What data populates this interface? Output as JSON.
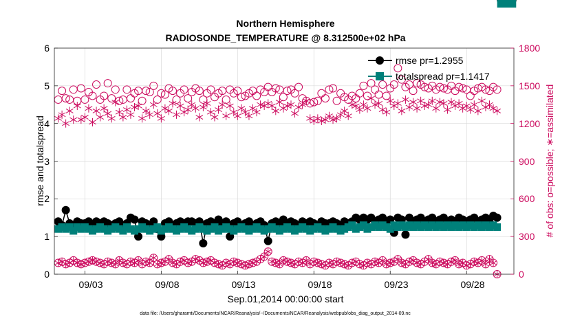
{
  "chart_data": {
    "type": "scatter",
    "title": "Northern Hemisphere",
    "subtitle": "RADIOSONDE_TEMPERATURE @ 8.312500e+02 hPa",
    "xlabel": "Sep.01,2014 00:00:00 start",
    "ylabel_left": "rmse and totalspread",
    "ylabel_right": "# of obs: o=possible; ∗=assimilated",
    "footer": "data file: /Users/gharamti/Documents/NCAR/Reanalysis/~/Documents/NCAR/Reanalysis/webpub/obs_diag_output_2014-09.nc",
    "x_tick_labels": [
      "09/03",
      "09/08",
      "09/13",
      "09/18",
      "09/23",
      "09/28"
    ],
    "x_tick_days": [
      3,
      8,
      13,
      18,
      23,
      28
    ],
    "xlim_days": [
      1,
      31.1
    ],
    "ylim_left": [
      0,
      6
    ],
    "yticks_left": [
      "0",
      "1",
      "2",
      "3",
      "4",
      "5",
      "6"
    ],
    "ylim_right": [
      0,
      1800
    ],
    "yticks_right": [
      "0",
      "300",
      "600",
      "900",
      "1200",
      "1500",
      "1800"
    ],
    "grid": true,
    "legend": {
      "placement": "top-right",
      "entries": [
        "rmse pr=1.2955",
        "totalspread pr=1.1417"
      ]
    },
    "colors": {
      "rmse": "#000000",
      "totalspread": "#00807a",
      "obs": "#cc0a5e",
      "grid": "#d9d9d9"
    },
    "x_days": [
      1.25,
      1.5,
      1.75,
      2,
      2.25,
      2.5,
      2.75,
      3,
      3.25,
      3.5,
      3.75,
      4,
      4.25,
      4.5,
      4.75,
      5,
      5.25,
      5.5,
      5.75,
      6,
      6.25,
      6.5,
      6.75,
      7,
      7.25,
      7.5,
      7.75,
      8,
      8.25,
      8.5,
      8.75,
      9,
      9.25,
      9.5,
      9.75,
      10,
      10.25,
      10.5,
      10.75,
      11,
      11.25,
      11.5,
      11.75,
      12,
      12.25,
      12.5,
      12.75,
      13,
      13.25,
      13.5,
      13.75,
      14,
      14.25,
      14.5,
      14.75,
      15,
      15.25,
      15.5,
      15.75,
      16,
      16.25,
      16.5,
      16.75,
      17,
      17.25,
      17.5,
      17.75,
      18,
      18.25,
      18.5,
      18.75,
      19,
      19.25,
      19.5,
      19.75,
      20,
      20.25,
      20.5,
      20.75,
      21,
      21.25,
      21.5,
      21.75,
      22,
      22.25,
      22.5,
      22.75,
      23,
      23.25,
      23.5,
      23.75,
      24,
      24.25,
      24.5,
      24.75,
      25,
      25.25,
      25.5,
      25.75,
      26,
      26.25,
      26.5,
      26.75,
      27,
      27.25,
      27.5,
      27.75,
      28,
      28.25,
      28.5,
      28.75,
      29,
      29.25,
      29.5,
      29.75,
      30,
      30.25,
      30.5,
      30.75,
      31
    ],
    "series": [
      {
        "name": "rmse pr=1.2955",
        "axis": "left",
        "marker": "filled-circle",
        "values": [
          1.4,
          1.3,
          1.7,
          1.35,
          1.3,
          1.4,
          1.35,
          1.35,
          1.4,
          1.3,
          1.4,
          1.35,
          1.4,
          1.35,
          1.3,
          1.35,
          1.4,
          1.3,
          1.35,
          1.5,
          1.45,
          1.0,
          1.4,
          1.35,
          1.3,
          1.4,
          1.2,
          1.0,
          1.35,
          1.4,
          1.3,
          1.35,
          1.4,
          1.35,
          1.4,
          1.4,
          1.35,
          1.4,
          0.82,
          1.35,
          1.4,
          1.3,
          1.45,
          1.35,
          1.4,
          1.0,
          1.35,
          1.4,
          1.3,
          1.35,
          1.4,
          1.3,
          1.35,
          1.4,
          1.3,
          0.88,
          1.35,
          1.4,
          1.3,
          1.45,
          1.35,
          1.4,
          1.35,
          1.3,
          1.4,
          1.35,
          1.4,
          1.35,
          1.3,
          1.4,
          1.35,
          1.35,
          1.4,
          1.35,
          1.3,
          1.4,
          1.35,
          1.4,
          1.5,
          1.45,
          1.5,
          1.45,
          1.5,
          1.4,
          1.45,
          1.5,
          1.4,
          1.45,
          1.1,
          1.5,
          1.45,
          1.05,
          1.5,
          1.4,
          1.45,
          1.5,
          1.4,
          1.45,
          1.5,
          1.4,
          1.45,
          1.5,
          1.4,
          1.45,
          1.4,
          1.5,
          1.45,
          1.4,
          1.45,
          1.5,
          1.4,
          1.45,
          1.5,
          1.4,
          1.55,
          1.5
        ]
      },
      {
        "name": "totalspread pr=1.1417",
        "axis": "left",
        "marker": "filled-square",
        "values": [
          1.2,
          1.25,
          1.2,
          1.25,
          1.15,
          1.25,
          1.2,
          1.25,
          1.2,
          1.15,
          1.2,
          1.25,
          1.2,
          1.15,
          1.2,
          1.25,
          1.2,
          1.15,
          1.25,
          1.2,
          1.15,
          1.2,
          1.25,
          1.2,
          1.15,
          1.2,
          1.25,
          1.15,
          1.2,
          1.25,
          1.2,
          1.15,
          1.2,
          1.25,
          1.2,
          1.15,
          1.2,
          1.25,
          1.2,
          1.15,
          1.2,
          1.25,
          1.15,
          1.2,
          1.25,
          1.2,
          1.15,
          1.2,
          1.25,
          1.2,
          1.15,
          1.2,
          1.25,
          1.2,
          1.15,
          1.2,
          1.25,
          1.2,
          1.15,
          1.2,
          1.25,
          1.2,
          1.15,
          1.2,
          1.25,
          1.2,
          1.15,
          1.2,
          1.25,
          1.2,
          1.15,
          1.2,
          1.25,
          1.2,
          1.15,
          1.2,
          1.25,
          1.3,
          1.2,
          1.25,
          1.3,
          1.2,
          1.25,
          1.3,
          1.25,
          1.3,
          1.25,
          1.2,
          1.3,
          1.25,
          1.3,
          1.25,
          1.3,
          1.25,
          1.3,
          1.25,
          1.3,
          1.25,
          1.3,
          1.25,
          1.3,
          1.25,
          1.3,
          1.25,
          1.3,
          1.25,
          1.3,
          1.25,
          1.3,
          1.25,
          1.3,
          1.25,
          1.3,
          1.25,
          1.3,
          1.25
        ]
      },
      {
        "name": "possible",
        "axis": "right",
        "marker": "open-circle",
        "values": [
          1390,
          1460,
          1400,
          1390,
          1470,
          1380,
          1480,
          1390,
          1450,
          1420,
          1510,
          1390,
          1420,
          1520,
          1400,
          1470,
          1380,
          1390,
          1470,
          1400,
          1440,
          1460,
          1380,
          1460,
          1450,
          1500,
          1390,
          1440,
          1430,
          1480,
          1460,
          1390,
          1440,
          1470,
          1400,
          1450,
          1480,
          1460,
          1390,
          1440,
          1470,
          1410,
          1440,
          1460,
          1390,
          1470,
          1440,
          1460,
          1410,
          1420,
          1440,
          1460,
          1420,
          1470,
          1450,
          1490,
          1450,
          1480,
          1470,
          1410,
          1460,
          1470,
          1440,
          1490,
          1400,
          1380,
          1360,
          1370,
          1380,
          1440,
          1400,
          1470,
          1480,
          1380,
          1440,
          1410,
          1390,
          1420,
          1400,
          1440,
          1500,
          1420,
          1520,
          1470,
          1430,
          1510,
          1420,
          1480,
          1510,
          1640,
          1550,
          1490,
          1510,
          1460,
          1520,
          1510,
          1490,
          1480,
          1500,
          1470,
          1490,
          1480,
          1470,
          1500,
          1460,
          1490,
          1480,
          1470,
          1420,
          1460,
          1480,
          1490,
          1470,
          1460,
          1490,
          1470
        ]
      },
      {
        "name": "assimilated",
        "axis": "right",
        "marker": "asterisk",
        "values": [
          1240,
          1270,
          1200,
          1300,
          1230,
          1340,
          1230,
          1250,
          1320,
          1210,
          1300,
          1250,
          1320,
          1280,
          1240,
          1370,
          1290,
          1250,
          1310,
          1270,
          1330,
          1340,
          1240,
          1300,
          1270,
          1350,
          1280,
          1240,
          1320,
          1300,
          1360,
          1270,
          1340,
          1290,
          1310,
          1350,
          1320,
          1250,
          1330,
          1360,
          1290,
          1250,
          1310,
          1350,
          1260,
          1340,
          1290,
          1260,
          1320,
          1290,
          1260,
          1320,
          1290,
          1350,
          1340,
          1360,
          1340,
          1300,
          1370,
          1320,
          1340,
          1350,
          1280,
          1330,
          1350,
          1380,
          1240,
          1220,
          1240,
          1220,
          1230,
          1260,
          1230,
          1240,
          1270,
          1300,
          1260,
          1350,
          1340,
          1310,
          1350,
          1320,
          1400,
          1350,
          1360,
          1310,
          1290,
          1380,
          1340,
          1360,
          1300,
          1390,
          1330,
          1370,
          1320,
          1380,
          1340,
          1350,
          1380,
          1320,
          1370,
          1360,
          1310,
          1370,
          1340,
          1360,
          1320,
          1340,
          1310,
          1350,
          1300,
          1380,
          1330,
          1350,
          1320,
          1300
        ]
      },
      {
        "name": "possible-low",
        "axis": "right",
        "marker": "open-circle",
        "values": [
          90,
          100,
          80,
          90,
          110,
          90,
          80,
          90,
          100,
          110,
          100,
          90,
          80,
          100,
          90,
          80,
          110,
          90,
          80,
          100,
          90,
          110,
          80,
          100,
          90,
          130,
          80,
          90,
          100,
          120,
          90,
          80,
          100,
          110,
          90,
          100,
          120,
          110,
          90,
          100,
          110,
          90,
          80,
          70,
          90,
          80,
          100,
          90,
          80,
          70,
          80,
          90,
          100,
          120,
          140,
          180,
          100,
          90,
          80,
          110,
          100,
          90,
          80,
          100,
          90,
          110,
          80,
          100,
          90,
          80,
          70,
          90,
          80,
          100,
          90,
          80,
          70,
          90,
          100,
          80,
          70,
          90,
          80,
          100,
          90,
          110,
          80,
          90,
          100,
          120,
          90,
          80,
          100,
          110,
          90,
          80,
          100,
          120,
          90,
          80,
          100,
          90,
          80,
          100,
          110,
          80,
          90,
          70,
          80,
          100,
          90,
          110,
          80,
          120,
          90,
          0
        ]
      },
      {
        "name": "assimilated-low",
        "axis": "right",
        "marker": "asterisk",
        "values": [
          90,
          100,
          80,
          90,
          110,
          90,
          80,
          90,
          100,
          110,
          100,
          90,
          80,
          100,
          90,
          80,
          110,
          90,
          80,
          100,
          90,
          110,
          80,
          100,
          90,
          130,
          80,
          90,
          100,
          120,
          90,
          80,
          100,
          110,
          90,
          100,
          120,
          110,
          90,
          100,
          110,
          90,
          80,
          70,
          90,
          80,
          100,
          90,
          80,
          70,
          80,
          90,
          100,
          120,
          140,
          180,
          100,
          90,
          80,
          110,
          100,
          90,
          80,
          100,
          90,
          110,
          80,
          100,
          90,
          80,
          70,
          90,
          80,
          100,
          90,
          80,
          70,
          90,
          100,
          80,
          70,
          90,
          80,
          100,
          90,
          110,
          80,
          90,
          100,
          120,
          90,
          80,
          100,
          110,
          90,
          80,
          100,
          120,
          90,
          80,
          100,
          90,
          80,
          100,
          110,
          80,
          90,
          70,
          80,
          100,
          90,
          110,
          80,
          120,
          90,
          0
        ]
      }
    ]
  }
}
